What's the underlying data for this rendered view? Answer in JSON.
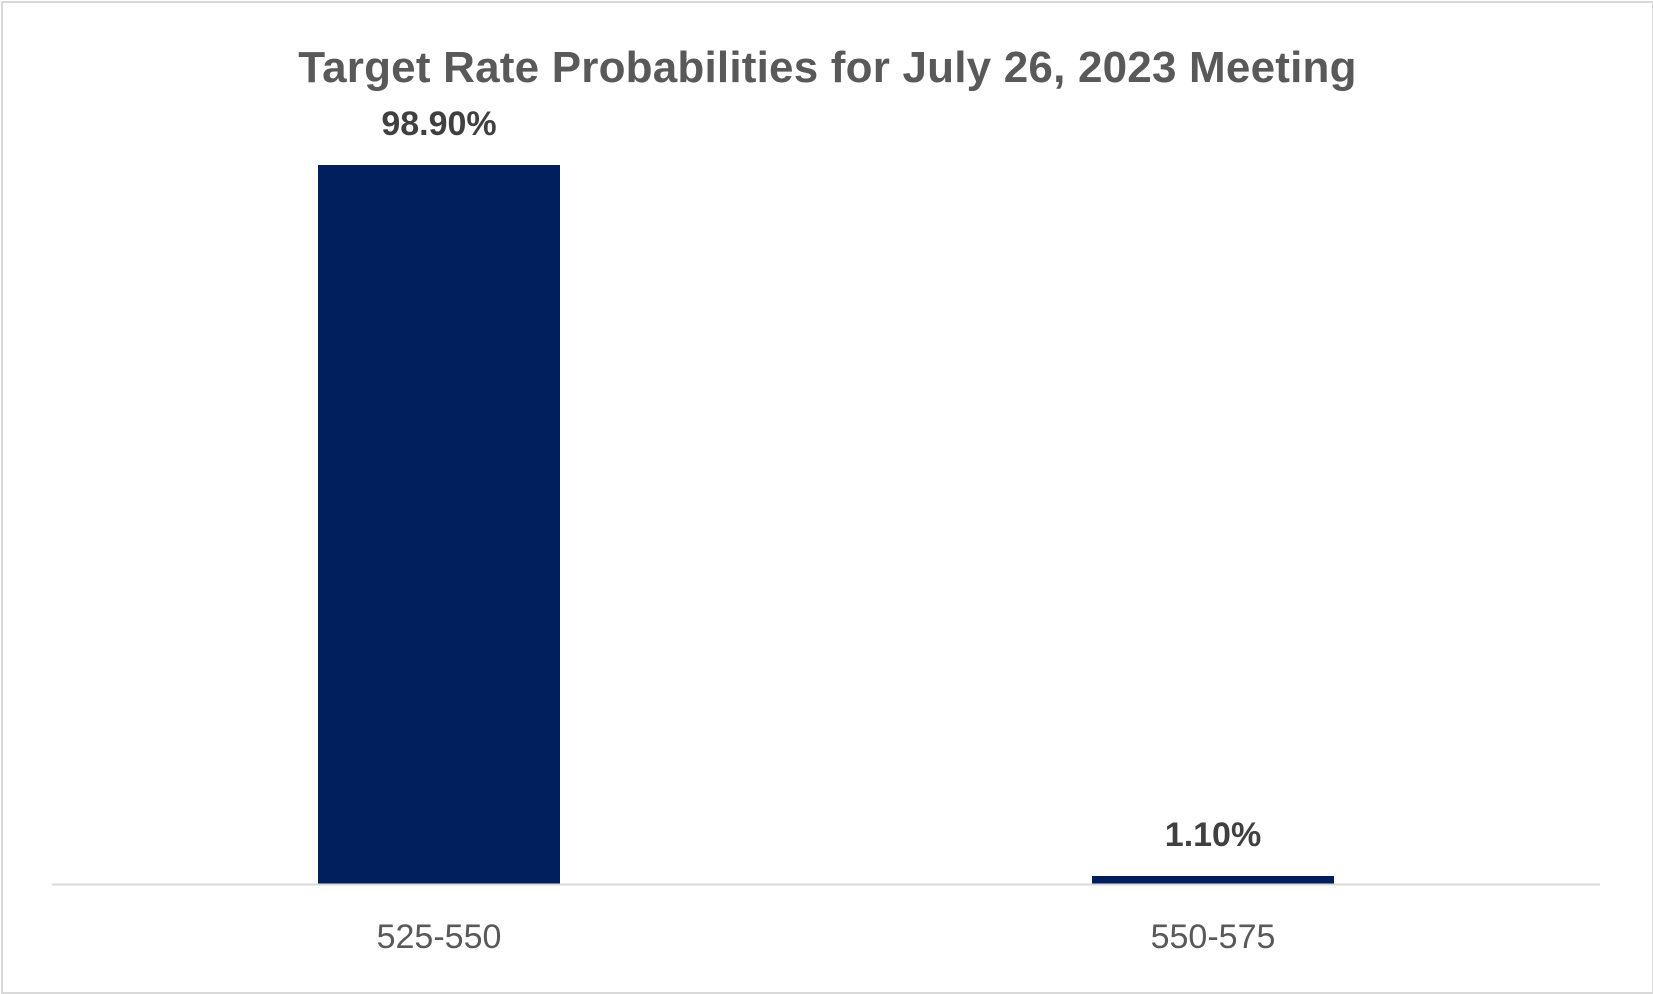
{
  "chart_data": {
    "type": "bar",
    "title": "Target Rate Probabilities for July 26, 2023 Meeting",
    "categories": [
      "525-550",
      "550-575"
    ],
    "values": [
      98.9,
      1.1
    ],
    "data_labels": [
      "98.90%",
      "1.10%"
    ],
    "xlabel": "",
    "ylabel": "",
    "ylim": [
      0,
      100
    ],
    "grid": false,
    "legend": "none",
    "bar_color": "#001f5c",
    "axis_color": "#d9d9d9",
    "label_color": "#404040"
  }
}
